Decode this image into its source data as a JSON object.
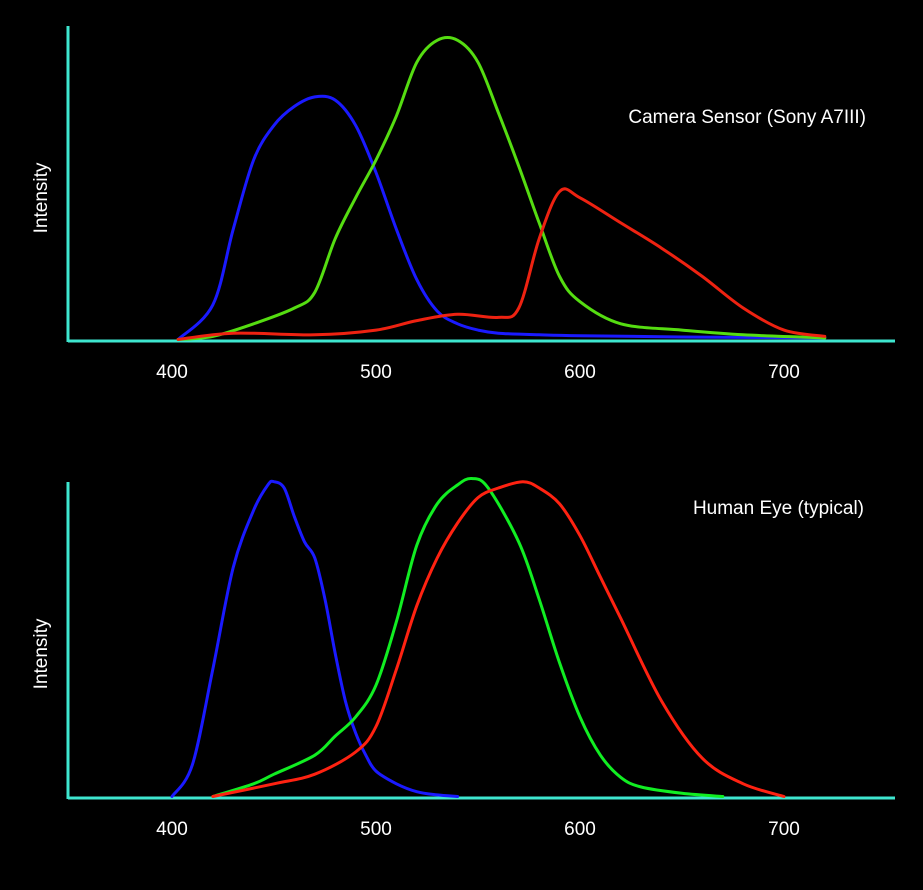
{
  "chart_data": [
    {
      "type": "line",
      "title": "Camera Sensor (Sony A7III)",
      "xlabel": "",
      "ylabel": "Intensity",
      "xticks": [
        "400",
        "500",
        "600",
        "700"
      ],
      "xtick_values": [
        400,
        500,
        600,
        700
      ],
      "xlim": [
        350,
        755
      ],
      "ylim": [
        0,
        1.0
      ],
      "axis_color": "#3ee6cf",
      "series": [
        {
          "name": "blue",
          "color": "#1a1aff",
          "x": [
            403,
            420,
            430,
            440,
            450,
            460,
            470,
            480,
            490,
            500,
            510,
            520,
            530,
            540,
            550,
            560,
            580,
            600,
            650,
            720
          ],
          "y": [
            0.0,
            0.11,
            0.35,
            0.57,
            0.68,
            0.74,
            0.77,
            0.76,
            0.68,
            0.53,
            0.35,
            0.19,
            0.09,
            0.05,
            0.03,
            0.02,
            0.015,
            0.012,
            0.008,
            0.005
          ]
        },
        {
          "name": "green",
          "color": "#55dd11",
          "x": [
            403,
            420,
            440,
            460,
            470,
            480,
            490,
            500,
            510,
            520,
            530,
            540,
            550,
            560,
            570,
            580,
            590,
            600,
            620,
            650,
            680,
            720
          ],
          "y": [
            0.0,
            0.01,
            0.05,
            0.1,
            0.15,
            0.32,
            0.45,
            0.57,
            0.71,
            0.88,
            0.95,
            0.95,
            0.88,
            0.72,
            0.55,
            0.37,
            0.2,
            0.12,
            0.05,
            0.03,
            0.015,
            0.005
          ]
        },
        {
          "name": "red",
          "color": "#ee2211",
          "x": [
            403,
            430,
            470,
            500,
            520,
            540,
            560,
            570,
            580,
            590,
            600,
            620,
            640,
            660,
            680,
            700,
            720
          ],
          "y": [
            0.0,
            0.02,
            0.015,
            0.03,
            0.06,
            0.08,
            0.07,
            0.1,
            0.32,
            0.47,
            0.45,
            0.37,
            0.29,
            0.2,
            0.1,
            0.03,
            0.01
          ]
        }
      ]
    },
    {
      "type": "line",
      "title": "Human Eye (typical)",
      "xlabel": "",
      "ylabel": "Intensity",
      "xticks": [
        "400",
        "500",
        "600",
        "700"
      ],
      "xtick_values": [
        400,
        500,
        600,
        700
      ],
      "xlim": [
        350,
        755
      ],
      "ylim": [
        0,
        1.0
      ],
      "axis_color": "#3ee6cf",
      "series": [
        {
          "name": "blue",
          "color": "#1a1aff",
          "x": [
            400,
            410,
            420,
            430,
            440,
            447,
            450,
            455,
            460,
            465,
            470,
            475,
            480,
            485,
            490,
            495,
            500,
            510,
            520,
            530,
            540
          ],
          "y": [
            0.0,
            0.1,
            0.4,
            0.72,
            0.9,
            0.98,
            0.99,
            0.97,
            0.88,
            0.8,
            0.75,
            0.62,
            0.45,
            0.3,
            0.2,
            0.13,
            0.08,
            0.04,
            0.015,
            0.005,
            0.0
          ]
        },
        {
          "name": "green",
          "color": "#11ee22",
          "x": [
            420,
            440,
            450,
            470,
            480,
            490,
            500,
            510,
            520,
            530,
            540,
            547,
            555,
            570,
            580,
            590,
            600,
            610,
            620,
            630,
            650,
            670
          ],
          "y": [
            0.0,
            0.04,
            0.07,
            0.13,
            0.19,
            0.25,
            0.35,
            0.55,
            0.79,
            0.92,
            0.98,
            1.0,
            0.97,
            0.8,
            0.62,
            0.42,
            0.25,
            0.13,
            0.06,
            0.03,
            0.01,
            0.0
          ]
        },
        {
          "name": "red",
          "color": "#ff2211",
          "x": [
            420,
            450,
            470,
            490,
            500,
            510,
            520,
            530,
            540,
            550,
            560,
            572,
            580,
            590,
            600,
            610,
            620,
            640,
            660,
            680,
            700
          ],
          "y": [
            0.0,
            0.04,
            0.07,
            0.14,
            0.22,
            0.4,
            0.6,
            0.75,
            0.86,
            0.94,
            0.97,
            0.99,
            0.97,
            0.92,
            0.82,
            0.69,
            0.56,
            0.3,
            0.12,
            0.04,
            0.0
          ]
        }
      ]
    }
  ]
}
